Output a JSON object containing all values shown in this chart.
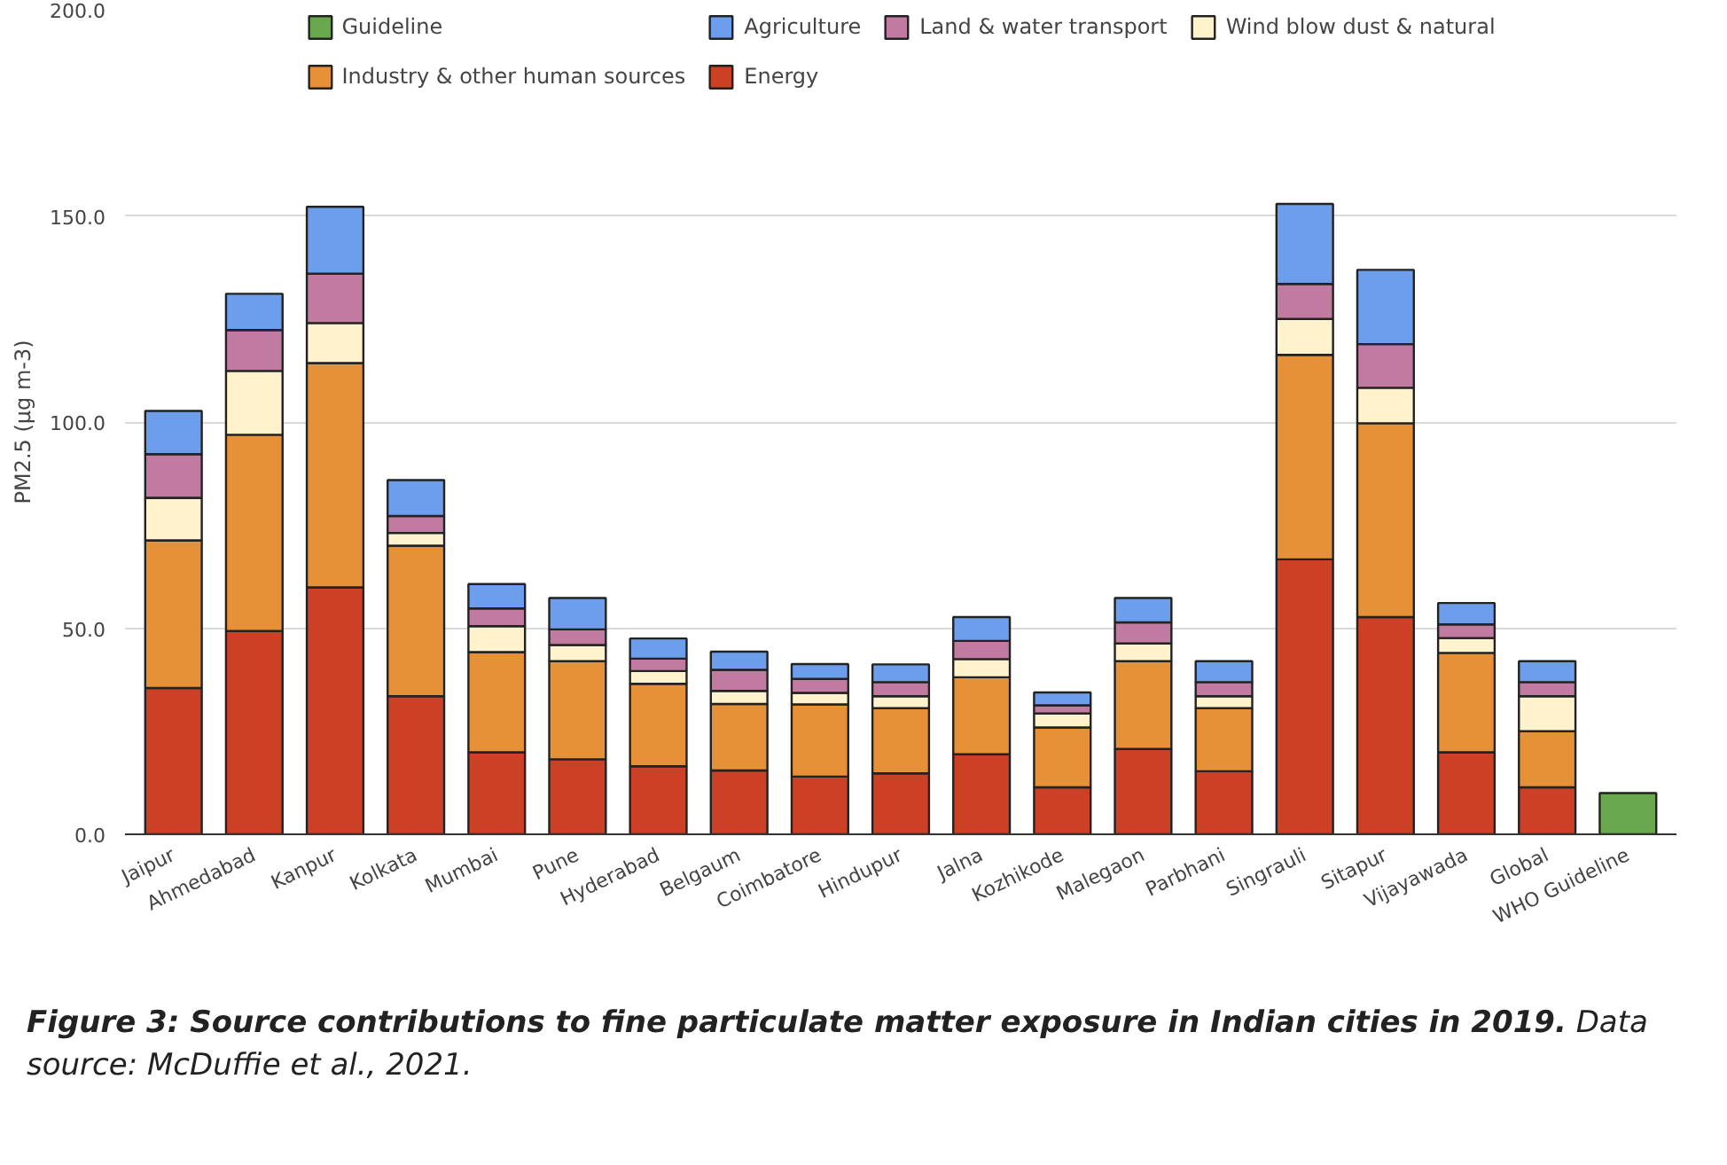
{
  "chart_data": {
    "type": "bar",
    "stacked": true,
    "ylabel": "PM2.5 (µg m-3)",
    "categories": [
      "Jaipur",
      "Ahmedabad",
      "Kanpur",
      "Kolkata",
      "Mumbai",
      "Pune",
      "Hyderabad",
      "Belgaum",
      "Coimbatore",
      "Hindupur",
      "Jalna",
      "Kozhikode",
      "Malegaon",
      "Parbhani",
      "Singrauli",
      "Sitapur",
      "Vijayawada",
      "Global",
      "WHO Guideline"
    ],
    "series": [
      {
        "name": "Energy",
        "color": "#cc4125",
        "values": [
          35.5,
          49.3,
          59.9,
          33.5,
          19.9,
          18.2,
          16.5,
          15.5,
          14.0,
          14.8,
          19.4,
          11.4,
          20.7,
          15.3,
          66.7,
          52.7,
          19.9,
          11.4,
          null
        ]
      },
      {
        "name": "Industry & other human sources",
        "color": "#e69138",
        "values": [
          35.8,
          47.6,
          54.4,
          36.5,
          24.3,
          23.8,
          20.0,
          16.1,
          17.5,
          15.8,
          18.7,
          14.5,
          21.3,
          15.3,
          49.6,
          47.0,
          24.1,
          13.6,
          null
        ]
      },
      {
        "name": "Wind blow dust & natural",
        "color": "#fff2cc",
        "values": [
          10.3,
          15.5,
          9.7,
          3.1,
          6.3,
          3.9,
          3.1,
          3.2,
          2.8,
          2.9,
          4.4,
          3.4,
          4.3,
          2.9,
          8.7,
          8.6,
          3.6,
          8.5,
          null
        ]
      },
      {
        "name": "Land & water transport",
        "color": "#c27ba0",
        "values": [
          10.6,
          9.9,
          12.0,
          4.1,
          4.3,
          3.8,
          3.0,
          5.1,
          3.4,
          3.4,
          4.4,
          2.0,
          5.1,
          3.4,
          8.5,
          10.6,
          3.3,
          3.4,
          null
        ]
      },
      {
        "name": "Agriculture",
        "color": "#6d9eeb",
        "values": [
          10.5,
          8.8,
          16.2,
          8.7,
          5.9,
          7.6,
          4.9,
          4.4,
          3.6,
          4.3,
          5.8,
          3.1,
          5.9,
          5.1,
          19.4,
          18.0,
          5.2,
          5.1,
          null
        ]
      },
      {
        "name": "Guideline",
        "color": "#6aa84f",
        "values": [
          null,
          null,
          null,
          null,
          null,
          null,
          null,
          null,
          null,
          null,
          null,
          null,
          null,
          null,
          null,
          null,
          null,
          null,
          10.0
        ]
      }
    ],
    "ylim": [
      0,
      200
    ],
    "yticks": [
      {
        "value": 0,
        "label": "0.0"
      },
      {
        "value": 50,
        "label": "50.0"
      },
      {
        "value": 100,
        "label": "100.0"
      },
      {
        "value": 150,
        "label": "150.0"
      },
      {
        "value": 200,
        "label": "200.0"
      }
    ],
    "grid": "y",
    "legend": "top",
    "annotations": [
      "Figure 3: Source contributions to fine particulate matter exposure in Indian cities in 2019.",
      "Data source: McDuffie et al., 2021."
    ]
  }
}
